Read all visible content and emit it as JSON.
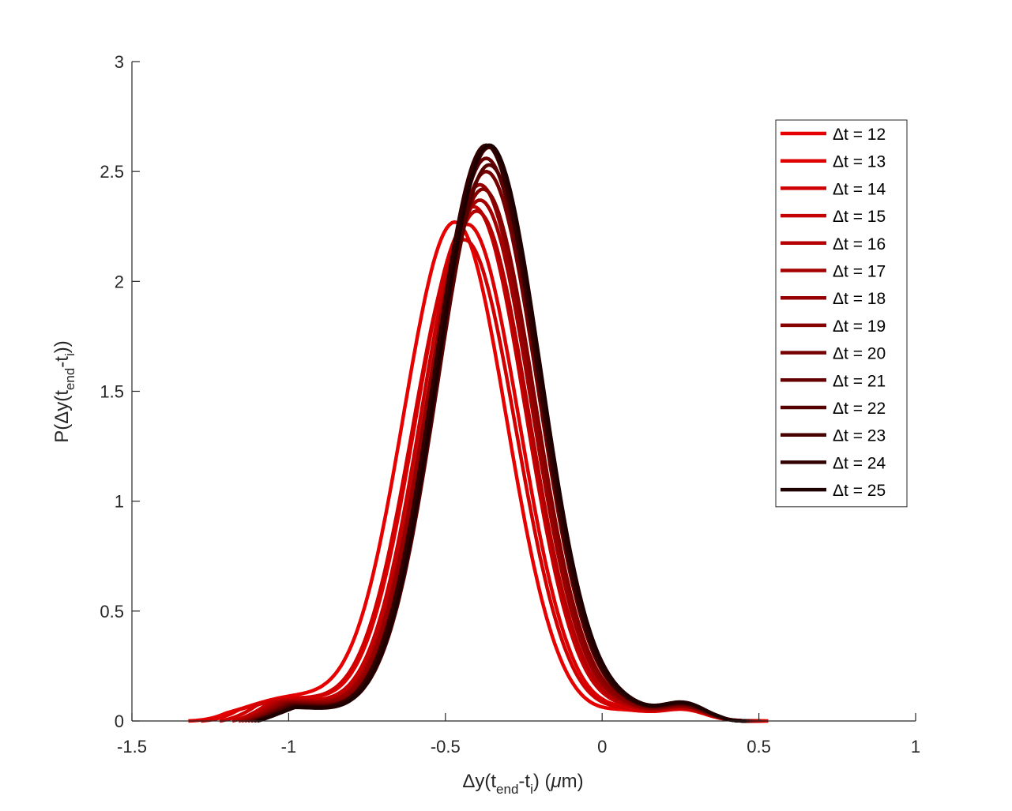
{
  "chart_data": {
    "type": "line",
    "title": "",
    "xlabel": {
      "main": "Δy(t",
      "sub1": "end",
      "mid": "-t",
      "sub2": "i",
      "tail": ") (",
      "mu": "μ",
      "unit": "m)"
    },
    "ylabel": {
      "main": "P(Δy(t",
      "sub1": "end",
      "mid": "-t",
      "sub2": "i",
      "tail": "))"
    },
    "xlim": [
      -1.5,
      1
    ],
    "ylim": [
      0,
      3
    ],
    "xticks": [
      -1.5,
      -1,
      -0.5,
      0,
      0.5,
      1
    ],
    "xtick_labels": [
      "-1.5",
      "-1",
      "-0.5",
      "0",
      "0.5",
      "1"
    ],
    "yticks": [
      0,
      0.5,
      1,
      1.5,
      2,
      2.5,
      3
    ],
    "ytick_labels": [
      "0",
      "0.5",
      "1",
      "1.5",
      "2",
      "2.5",
      "3"
    ],
    "grid": false,
    "legend_position": "top-right",
    "series": [
      {
        "name": "Δt = 12",
        "color": "#e60000",
        "range": [
          -1.32,
          0.53
        ],
        "mean": -0.47,
        "peak": 2.27
      },
      {
        "name": "Δt = 13",
        "color": "#dc0000",
        "range": [
          -1.28,
          0.52
        ],
        "mean": -0.43,
        "peak": 2.26
      },
      {
        "name": "Δt = 14",
        "color": "#d00000",
        "range": [
          -1.22,
          0.51
        ],
        "mean": -0.44,
        "peak": 2.19
      },
      {
        "name": "Δt = 15",
        "color": "#c40000",
        "range": [
          -1.18,
          0.5
        ],
        "mean": -0.41,
        "peak": 2.34
      },
      {
        "name": "Δt = 16",
        "color": "#b40000",
        "range": [
          -1.16,
          0.49
        ],
        "mean": -0.4,
        "peak": 2.32
      },
      {
        "name": "Δt = 17",
        "color": "#a50000",
        "range": [
          -1.15,
          0.48
        ],
        "mean": -0.39,
        "peak": 2.37
      },
      {
        "name": "Δt = 18",
        "color": "#950000",
        "range": [
          -1.14,
          0.48
        ],
        "mean": -0.39,
        "peak": 2.44
      },
      {
        "name": "Δt = 19",
        "color": "#860000",
        "range": [
          -1.13,
          0.47
        ],
        "mean": -0.38,
        "peak": 2.42
      },
      {
        "name": "Δt = 20",
        "color": "#760000",
        "range": [
          -1.12,
          0.47
        ],
        "mean": -0.37,
        "peak": 2.5
      },
      {
        "name": "Δt = 21",
        "color": "#660000",
        "range": [
          -1.12,
          0.47
        ],
        "mean": -0.37,
        "peak": 2.56
      },
      {
        "name": "Δt = 22",
        "color": "#560000",
        "range": [
          -1.11,
          0.46
        ],
        "mean": -0.36,
        "peak": 2.53
      },
      {
        "name": "Δt = 23",
        "color": "#460000",
        "range": [
          -1.11,
          0.46
        ],
        "mean": -0.36,
        "peak": 2.61
      },
      {
        "name": "Δt = 24",
        "color": "#330000",
        "range": [
          -1.1,
          0.46
        ],
        "mean": -0.37,
        "peak": 2.62
      },
      {
        "name": "Δt = 25",
        "color": "#1e0000",
        "range": [
          -1.1,
          0.46
        ],
        "mean": -0.36,
        "peak": 2.62
      }
    ]
  }
}
